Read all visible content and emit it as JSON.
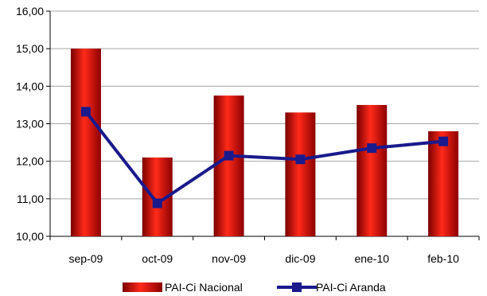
{
  "chart_data": {
    "type": "bar",
    "categories": [
      "sep-09",
      "oct-09",
      "nov-09",
      "dic-09",
      "ene-10",
      "feb-10"
    ],
    "series": [
      {
        "name": "PAI-Ci Nacional",
        "type": "bar",
        "color": "#d40000",
        "values": [
          15.0,
          12.1,
          13.75,
          13.3,
          13.5,
          12.8
        ]
      },
      {
        "name": "PAI-Ci Aranda",
        "type": "line",
        "color": "#1a1a8c",
        "values": [
          13.32,
          10.88,
          12.15,
          12.05,
          12.35,
          12.53
        ]
      }
    ],
    "ylim": [
      10,
      16
    ],
    "yticks": [
      "10,00",
      "11,00",
      "12,00",
      "13,00",
      "14,00",
      "15,00",
      "16,00"
    ],
    "grid": true,
    "legend_position": "bottom"
  }
}
